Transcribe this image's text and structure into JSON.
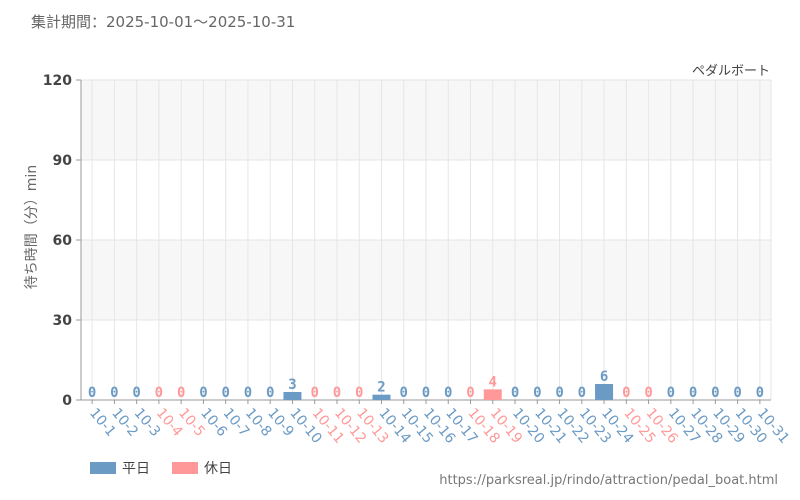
{
  "header": {
    "period_label": "集計期間：2025-10-01～2025-10-31",
    "attraction_name": "ペダルボート"
  },
  "footer": {
    "source_url": "https://parksreal.jp/rindo/attraction/pedal_boat.html"
  },
  "colors": {
    "weekday": "#6b9ac4",
    "holiday": "#ff9999",
    "grid": "#e6e6e6",
    "band": "#f7f7f7"
  },
  "chart_data": {
    "type": "bar",
    "ylabel": "待ち時間（分）min",
    "ylim": [
      0,
      120
    ],
    "yticks": [
      0,
      30,
      60,
      90,
      120
    ],
    "grid": true,
    "legend_position": "bottom-left",
    "legend": [
      {
        "key": "weekday",
        "label": "平日"
      },
      {
        "key": "holiday",
        "label": "休日"
      }
    ],
    "categories": [
      "10-1",
      "10-2",
      "10-3",
      "10-4",
      "10-5",
      "10-6",
      "10-7",
      "10-8",
      "10-9",
      "10-10",
      "10-11",
      "10-12",
      "10-13",
      "10-14",
      "10-15",
      "10-16",
      "10-17",
      "10-18",
      "10-19",
      "10-20",
      "10-21",
      "10-22",
      "10-23",
      "10-24",
      "10-25",
      "10-26",
      "10-27",
      "10-28",
      "10-29",
      "10-30",
      "10-31"
    ],
    "values": [
      0,
      0,
      0,
      0,
      0,
      0,
      0,
      0,
      0,
      3,
      0,
      0,
      0,
      2,
      0,
      0,
      0,
      0,
      4,
      0,
      0,
      0,
      0,
      6,
      0,
      0,
      0,
      0,
      0,
      0,
      0
    ],
    "day_types": [
      "weekday",
      "weekday",
      "weekday",
      "holiday",
      "holiday",
      "weekday",
      "weekday",
      "weekday",
      "weekday",
      "weekday",
      "holiday",
      "holiday",
      "holiday",
      "weekday",
      "weekday",
      "weekday",
      "weekday",
      "holiday",
      "holiday",
      "weekday",
      "weekday",
      "weekday",
      "weekday",
      "weekday",
      "holiday",
      "holiday",
      "weekday",
      "weekday",
      "weekday",
      "weekday",
      "weekday"
    ]
  }
}
